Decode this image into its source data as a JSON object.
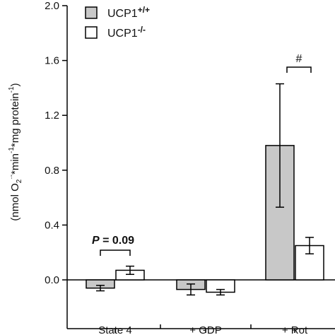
{
  "chart_data": {
    "type": "bar",
    "categories": [
      "State 4",
      "+ GDP",
      "+ Rot"
    ],
    "series": [
      {
        "name": "UCP1+/+",
        "name_base": "UCP1",
        "name_sup": "+/+",
        "color": "#c8c8c8",
        "values": [
          -0.06,
          -0.07,
          0.98
        ],
        "errors": [
          0.02,
          0.04,
          0.45
        ]
      },
      {
        "name": "UCP1-/-",
        "name_base": "UCP1",
        "name_sup": "-/-",
        "color": "#ffffff",
        "values": [
          0.07,
          -0.09,
          0.25
        ],
        "errors": [
          0.03,
          0.02,
          0.06
        ]
      }
    ],
    "ylim": [
      -0.18,
      2.0
    ],
    "yticks": [
      "2.0",
      "1.6",
      "1.2",
      "0.8",
      "0.4",
      "0.0"
    ],
    "ylabel": {
      "part1": "(nmol O",
      "sub": "2",
      "sup1": "·-",
      "part2": "*min",
      "sup2": "-1",
      "part3": "*mg protein",
      "sup3": "-1",
      "part4": ")"
    },
    "legend_position": "top-center",
    "annotations": [
      {
        "category": "State 4",
        "italic": "P",
        "text": " = 0.09"
      },
      {
        "category": "+ Rot",
        "text": "#"
      }
    ]
  }
}
